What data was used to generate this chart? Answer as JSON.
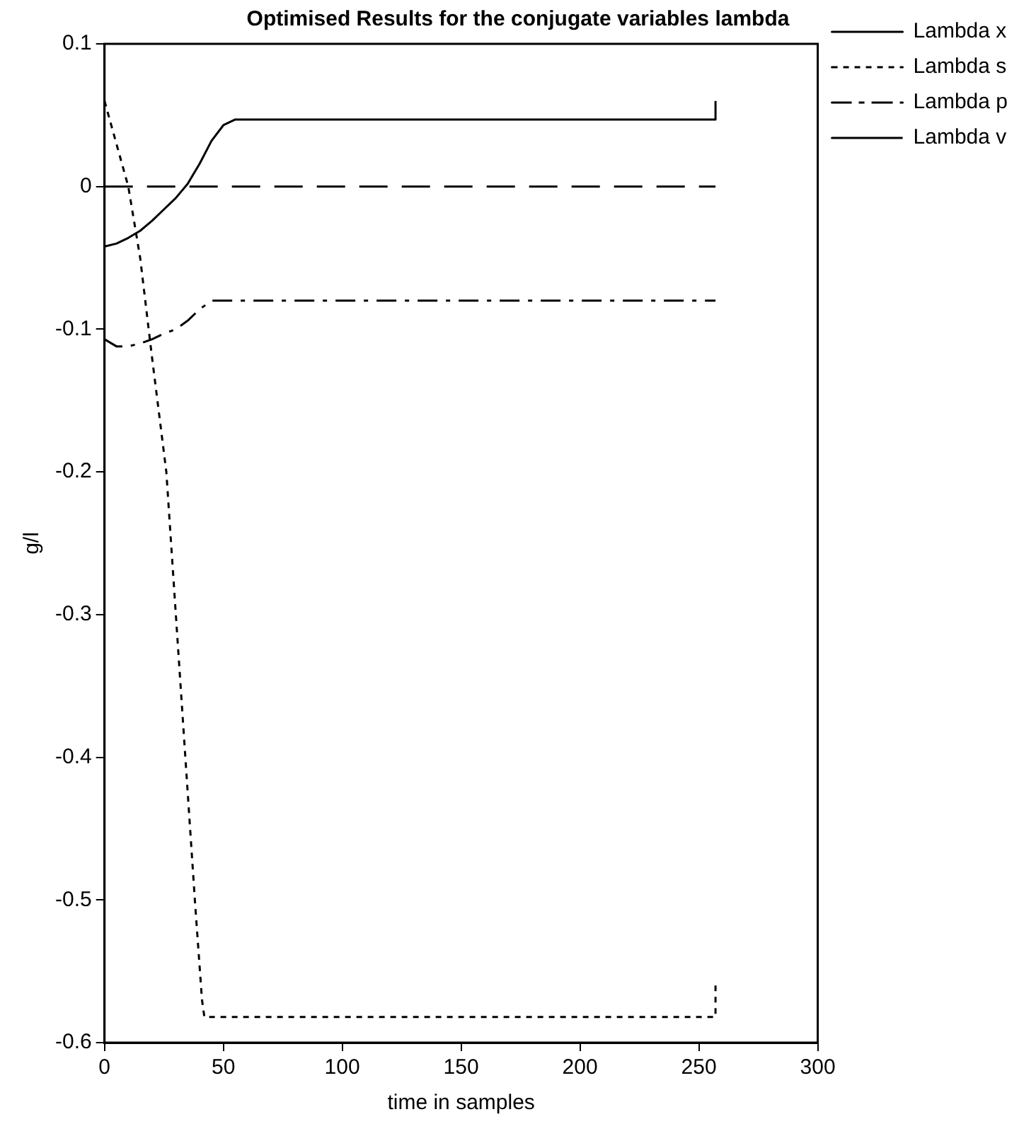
{
  "chart_data": {
    "type": "line",
    "title": "Optimised Results for the conjugate variables lambda",
    "xlabel": "time in samples",
    "ylabel": "g/l",
    "xlim": [
      0,
      300
    ],
    "xticks": [
      0,
      50,
      100,
      150,
      200,
      250,
      300
    ],
    "ylim": [
      -0.6,
      0.1
    ],
    "yticks": [
      0.1,
      0,
      -0.1,
      -0.2,
      -0.3,
      -0.4,
      -0.5,
      -0.6
    ],
    "grid": false,
    "legend": "top right",
    "marker": "none",
    "series": [
      {
        "name": "Lambda x",
        "color": "#000000",
        "line_style": "solid",
        "x": [
          0,
          5,
          10,
          15,
          20,
          25,
          30,
          35,
          40,
          45,
          50,
          55,
          255,
          257,
          257
        ],
        "values": [
          -0.042,
          -0.04,
          -0.036,
          -0.031,
          -0.024,
          -0.016,
          -0.008,
          0.002,
          0.016,
          0.032,
          0.043,
          0.047,
          0.047,
          0.047,
          0.06
        ]
      },
      {
        "name": "Lambda s",
        "color": "#000000",
        "line_style": "dotted",
        "x": [
          0,
          5,
          10,
          15,
          20,
          26,
          30,
          34,
          38,
          41,
          42,
          257,
          257
        ],
        "values": [
          0.06,
          0.03,
          0.0,
          -0.05,
          -0.12,
          -0.2,
          -0.3,
          -0.4,
          -0.5,
          -0.57,
          -0.582,
          -0.582,
          -0.556
        ]
      },
      {
        "name": "Lambda p",
        "color": "#000000",
        "line_style": "dashdot",
        "x": [
          0,
          5,
          10,
          15,
          20,
          25,
          30,
          35,
          40,
          45,
          257
        ],
        "values": [
          -0.107,
          -0.112,
          -0.112,
          -0.11,
          -0.107,
          -0.103,
          -0.1,
          -0.094,
          -0.086,
          -0.08,
          -0.08
        ]
      },
      {
        "name": "Lambda v",
        "color": "#000000",
        "line_style": "dashed",
        "x": [
          0,
          257
        ],
        "values": [
          0,
          0
        ]
      }
    ]
  }
}
